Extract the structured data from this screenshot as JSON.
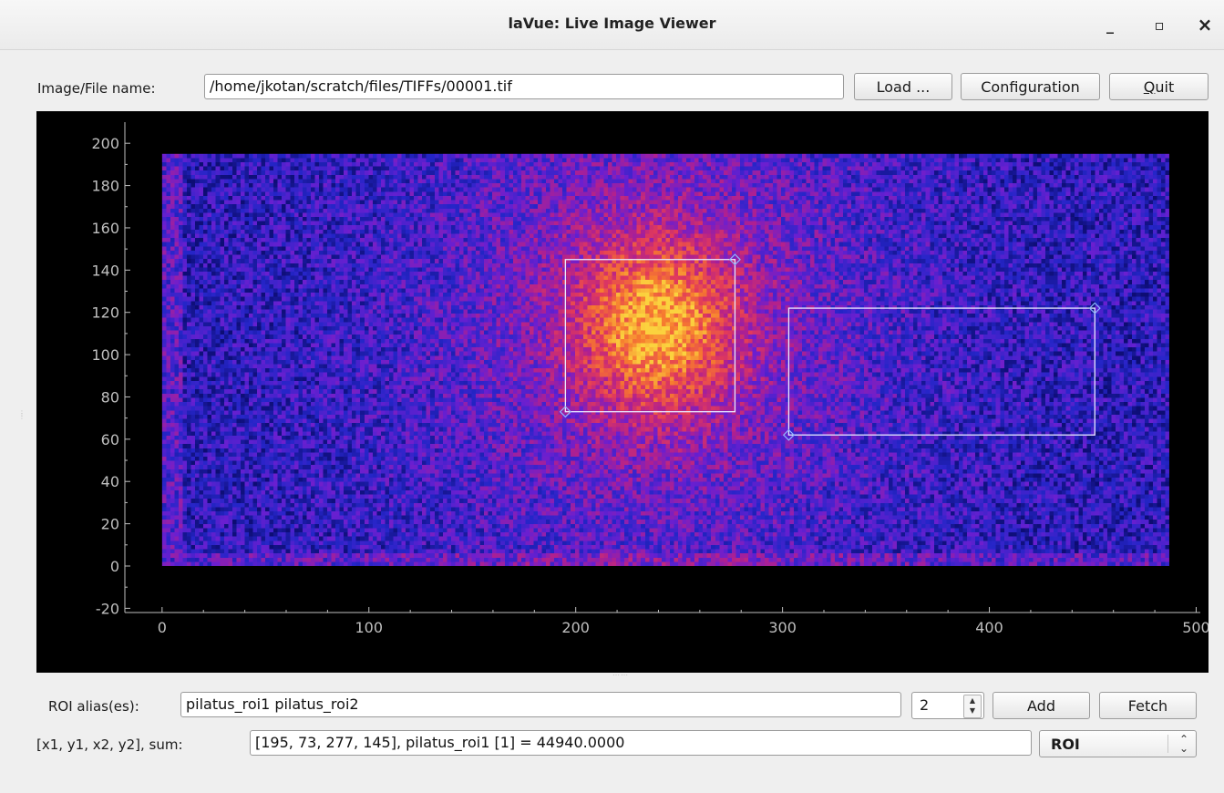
{
  "window": {
    "title": "laVue: Live Image Viewer",
    "minimize_glyph": "_",
    "maximize_glyph": "▫",
    "close_glyph": "×"
  },
  "file": {
    "label": "Image/File name:",
    "value": "/home/jkotan/scratch/files/TIFFs/00001.tif"
  },
  "buttons": {
    "load": "Load ...",
    "configuration": "Configuration",
    "quit_mnemonic": "Q",
    "quit_rest": "uit",
    "add": "Add",
    "fetch": "Fetch"
  },
  "plot": {
    "x_ticks": [
      "0",
      "100",
      "200",
      "300",
      "400",
      "500"
    ],
    "x_tick_values": [
      0,
      100,
      200,
      300,
      400,
      500
    ],
    "y_ticks": [
      "200",
      "180",
      "160",
      "140",
      "120",
      "100",
      "80",
      "60",
      "40",
      "20",
      "0",
      "-20"
    ],
    "y_tick_values": [
      200,
      180,
      160,
      140,
      120,
      100,
      80,
      60,
      40,
      20,
      0,
      -20
    ],
    "x_range": [
      -18,
      502
    ],
    "y_range": [
      -22,
      210
    ],
    "image_extent": {
      "x": [
        0,
        487
      ],
      "y": [
        0,
        195
      ]
    },
    "hotspot_center": [
      238,
      115
    ],
    "colormap": [
      "#0a0a6a",
      "#2525c8",
      "#6a1fd0",
      "#b0208f",
      "#e23a5a",
      "#f67a2f",
      "#fbd23e"
    ],
    "axis_color": "#bfbfbf",
    "roi_color": "#e8e8ff",
    "rois": [
      {
        "name": "pilatus_roi1",
        "x1": 195,
        "y1": 73,
        "x2": 277,
        "y2": 145
      },
      {
        "name": "pilatus_roi2",
        "x1": 303,
        "y1": 62,
        "x2": 451,
        "y2": 122
      }
    ]
  },
  "roi": {
    "alias_label": "ROI alias(es):",
    "alias_value": "pilatus_roi1 pilatus_roi2",
    "count": "2",
    "sum_label": "[x1, y1, x2, y2], sum:",
    "sum_value": "[195, 73, 277, 145], pilatus_roi1 [1] = 44940.0000",
    "mode": "ROI"
  }
}
